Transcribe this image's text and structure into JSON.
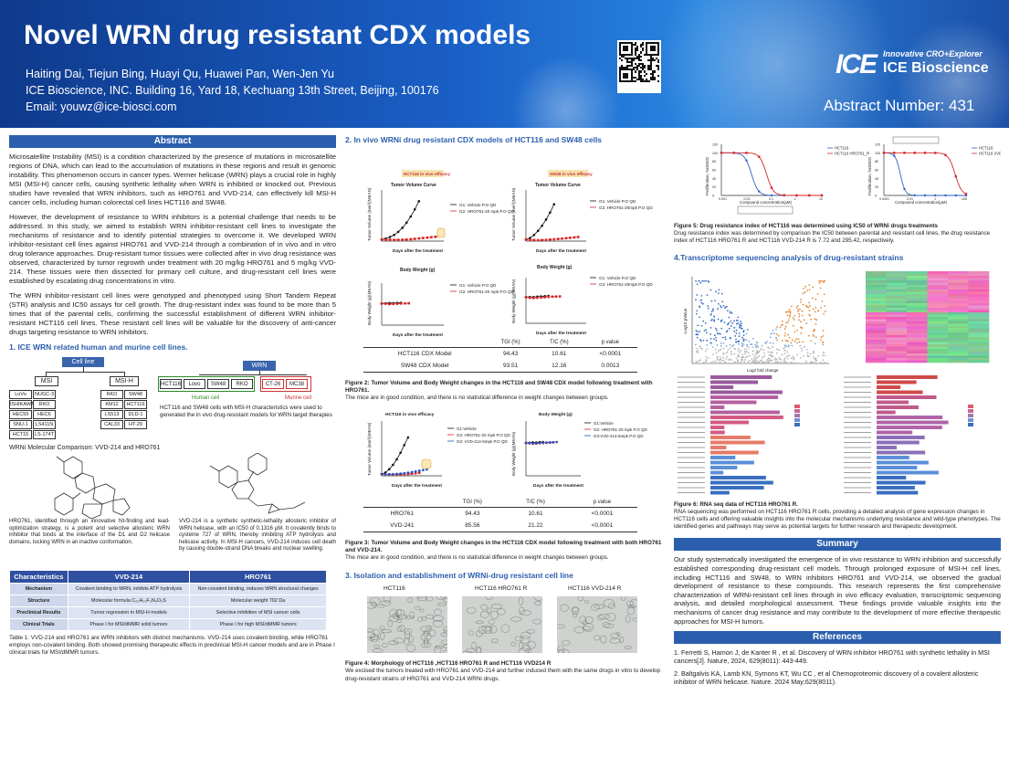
{
  "header": {
    "title": "Novel WRN drug resistant CDX models",
    "authors": "Haiting Dai, Tiejun Bing, Huayi Qu, Huawei Pan, Wen-Jen Yu",
    "affiliation": "ICE Bioscience, INC. Building 16, Yard 18, Kechuang 13th Street, Beijing, 100176",
    "email": "Email: youwz@ice-biosci.com",
    "logo_mark": "ICE",
    "logo_tagline": "Innovative CRO+Explorer",
    "logo_name": "ICE Bioscience",
    "abstract_number": "Abstract Number: 431"
  },
  "abstract": {
    "heading": "Abstract",
    "p1": "Microsatellite Instability (MSI) is a condition characterized by the presence of mutations in microsatellite regions of DNA, which can lead to the accumulation of mutations in these regions and result in genomic instability. This phenomenon occurs in cancer types. Werner helicase (WRN) plays a crucial role in highly MSI (MSI-H) cancer cells, causing synthetic lethality when WRN is inhibited or knocked out. Previous studies have revealed that WRN inhibitors, such as HRO761 and VVD-214, can effectively kill MSI-H cancer cells, including human colorectal cell lines HCT116 and SW48.",
    "p2": "However, the development of resistance to WRN inhibitors is a potential challenge that needs to be addressed. In this study, we aimed to establish WRN inhibitor-resistant cell lines to investigate the mechanisms of resistance and to identify potential strategies to overcome it. We developed WRN inhibitor-resistant cell lines against HRO761 and VVD-214 through a combination of in vivo and in vitro drug tolerance approaches. Drug-resistant tumor tissues were collected after in vivo drug resistance was observed, characterized by tumor regrowth under treatment with 20 mg/kg HRO761 and 5 mg/kg VVD-214. These tissues were then dissected for primary cell culture, and drug-resistant cell lines were established by escalating drug concentrations in vitro.",
    "p3": "The WRN inhibitor-resistant cell lines were genotyped and phenotyped using Short Tandem Repeat (STR) analysis and IC50 assays for cell growth. The drug-resistant index was found to be more than 5 times that of the parental cells, confirming the successful establishment of different WRN inhibitor-resistant HCT116 cell lines. These resistant cell lines will be valuable for the discovery of anti-cancer drugs targeting resistance to WRN inhibitors."
  },
  "section1": {
    "heading": "1. ICE WRN related human and murine cell lines.",
    "tree": {
      "root": "Cell line",
      "msi": "MSI",
      "msih": "MSI-H",
      "msi_items": [
        [
          "LoVo",
          "NUGC-3"
        ],
        [
          "ISHIKAWA",
          "RKO"
        ],
        [
          "HEC59",
          "HEC6"
        ],
        [
          "SNU-1",
          "LS411N"
        ],
        [
          "HCT15",
          "LS-174T"
        ]
      ],
      "msih_items": [
        [
          "RKO",
          "SW48"
        ],
        [
          "KM12",
          "HCT116"
        ],
        [
          "LS513",
          "DLD-1"
        ],
        [
          "CAL33",
          "HT-29"
        ]
      ]
    },
    "wrn": {
      "root": "WRN",
      "human": [
        "HCT116",
        "Lovo",
        "SW48",
        "RKO"
      ],
      "murine": [
        "CT-26",
        "MC38"
      ],
      "human_label": "Human cell",
      "murine_label": "Murine cell"
    },
    "note": "HCT116 and SW48 cells with MSI-H characteristics were used to generated the in vivo drug-resistant models for WRN target therapies",
    "comparison_title": "WRNi Molecular Comparison: VVD-214 and HRO761",
    "hro_desc": "HRO761, identified through an innovative hit-finding and lead-optimization strategy, is a potent and selective allosteric WRN inhibitor that binds at the interface of the D1 and D2 helicase domains, locking WRN in an inactive conformation.",
    "vvd_desc": "VVD-214 is a synthetic synthetic-lethality allosteric inhibitor of WRN helicase, with an IC50 of 0.1316 μM. It covalently binds to cysteine 727 of WRN, thereby inhibiting ATP hydrolysis and helicase activity. In MSI-H cancers, VVD-214 induces cell death by causing double-strand DNA breaks and nuclear swelling.",
    "table": {
      "headers": [
        "Characteristics",
        "VVD-214",
        "HRO761"
      ],
      "rows": [
        [
          "Mechanism",
          "Covalent binding to WRN, inhibits ATP hydrolysis",
          "Non-covalent binding, induces WRN structural changes"
        ],
        [
          "Structure",
          "Molecular formula C₂₅H₂₇F₃N₆O₅S",
          "Molecular weight 702 Da"
        ],
        [
          "Preclinical Results",
          "Tumor regression in MSI-H models",
          "Selective inhibition of MSI cancer cells"
        ],
        [
          "Clinical Trials",
          "Phase I for MSI/dMMR solid tumors",
          "Phase I for high MSI/dMMR tumors"
        ]
      ]
    },
    "table_caption": "Table 1: VVD-214 and HRO761 are WRN inhibitors with distinct mechanisms. VVD-214 uses covalent binding, while HRO761 employs non-covalent binding. Both showed promising therapeutic effects in preclinical MSI-H cancer models and are in Phase I clinical trials for MSI/dMMR tumors."
  },
  "section2": {
    "heading": "2. In vivo WRNi drug resistant CDX models of HCT116 and SW48 cells",
    "hct_tag": "HCT116 in vivo efficacy",
    "sw_tag": "SW48 in vivo efficacy",
    "tv_title": "Tumor Volume Curve",
    "bw_title": "Body Weight (g)",
    "x_label": "Days after the treatment",
    "tv_ylabel": "Tumor Volume (mm³)(MEAN)",
    "bw_ylabel": "Body Weight (g)(MEAN)",
    "legend_vehicle": "G1: Vehicle  P.O  QD",
    "legend_hro_hct": "G2: HRO761-20 mpk  P.O  QD",
    "legend_hro_sw": "G2: HRO761-20mpk  P.O  QD",
    "table_headers": [
      "",
      "TGI (%)",
      "T/C (%)",
      "p value"
    ],
    "table_rows": [
      [
        "HCT116 CDX Model",
        "94.43",
        "10.61",
        "<0.0001"
      ],
      [
        "SW48 CDX Model",
        "93.51",
        "12.16",
        "0.0013"
      ]
    ],
    "fig2_caption_bold": "Figure 2: Tumor Volume and Body Weight changes in the HCT116 and SW48 CDX model following treatment with HRO761.",
    "fig2_caption": "The mice are in good condition, and there is no statistical difference in weight changes between groups.",
    "fig3_tv_title": "HCT116 in vivo efficacy",
    "fig3_bw_title": "Body Weight (g)",
    "fig3_legend": [
      "G1:Vehicle",
      "G2: HRO761-20 mpk P.O QD",
      "G3: VVD-214-5mpk P.O QD"
    ],
    "fig3_legend_bw": [
      "G1:Vehicle",
      "G2: HRO761-20 mpk P.O QD",
      "G3:VVD-214-5mpk P.O QD"
    ],
    "fig3_rows": [
      [
        "HRO761",
        "94.43",
        "10.61",
        "<0.0001"
      ],
      [
        "VVD-241",
        "85.56",
        "21.22",
        "<0.0001"
      ]
    ],
    "fig3_caption_bold": "Figure 3: Tumor Volume and Body Weight changes in the HCT116 CDX model following treatment with both HRO761 and VVD-214.",
    "fig3_caption": "The mice are in good condition, and there is no statistical difference in weight changes between groups."
  },
  "section3": {
    "heading": "3. Isolation and establishment of WRNi-drug resistant cell line",
    "labels": [
      "HCT116",
      "HCT116 HRO761 R",
      "HCT116 VVD-214 R"
    ],
    "fig4_caption_bold": "Figure 4: Morphology of HCT116 ,HCT116 HRO761 R and HCT116 VVD214 R",
    "fig4_caption": "We excised the tumors treated with HRO761 and VVD-214 and further induced them with the same drugs in vitro to develop drug-resistant strains of HRO761 and VVD-214 WRNi drugs."
  },
  "ic50": {
    "left_ylabel": "Proliferation, %DMSO",
    "left_xlabel": "Compound concentration(μM)",
    "left_legend": [
      "HCT116",
      "HCT116 HRO761_R"
    ],
    "right_ylabel": "Proliferation, %DMSO",
    "right_xlabel": "Compound concentration(μM)",
    "right_legend": [
      "HCT116",
      "HCT116 VVD-214R"
    ],
    "fig5_caption_bold": "Figure 5: Drug resistance index of HCT116 was determined using IC50 of WRNi drugs treatments",
    "fig5_caption": "Drug resistance index was determined by comparison the IC50 between parental and resistant cell lines, the drug resistance index of HCT116 HRO761 R and HCT116 VVD-214 R is 7.72 and 295.42, respectively."
  },
  "section4": {
    "heading": "4.Transcriptome sequencing analysis of drug-resistant strains",
    "volcano_xlabel": "Log2 fold change",
    "volcano_ylabel": "-Log10 pValue",
    "fig6_caption_bold": "Figure 6: RNA seq data of HCT116 HRO761 R.",
    "fig6_caption": "RNA sequencing was performed on HCT116 HRO761 R cells, providing a detailed analysis of gene expression changes in HCT116 cells and offering valuable insights into the molecular mechanisms underlying resistance and wild-type phenotypes. The identified genes and pathways may serve as potential targets for further research and therapeutic development."
  },
  "summary": {
    "heading": "Summary",
    "text": "Our study systematically investigated the emergence of in vivo resistance to WRN inhibition and successfully established corresponding drug-resistant cell models. Through prolonged exposure of MSI-H cell lines, including HCT116 and SW48, to WRN inhibitors HRO761 and VVD-214, we observed the gradual development of resistance to these compounds. This research represents the first comprehensive characterization of WRNi-resistant cell lines through in vivo efficacy evaluation, transcriptomic sequencing analysis, and detailed morphological assessment. These findings provide valuable insights into the mechanisms of cancer drug resistance and may contribute to the development of more effective therapeutic approaches for MSI-H tumors."
  },
  "references": {
    "heading": "References",
    "items": [
      "1. Ferretti S, Hamon J, de Kanter R , et al. Discovery of WRN inhibitor HRO761 with synthetic lethality in MSI cancers[J]. Nature, 2024, 629(8011): 443-449.",
      "2. Baltgalvis KA, Lamb KN, Symons KT, Wu CC , et al Chemoproteomic discovery of a covalent allosteric inhibitor of WRN helicase. Nature. 2024 May;629(8011)."
    ]
  },
  "colors": {
    "header_blue": "#1a5fc6",
    "banner": "#2b5fae",
    "vehicle": "#111111",
    "hro": "#d62728",
    "vvd": "#1f4fc4"
  }
}
